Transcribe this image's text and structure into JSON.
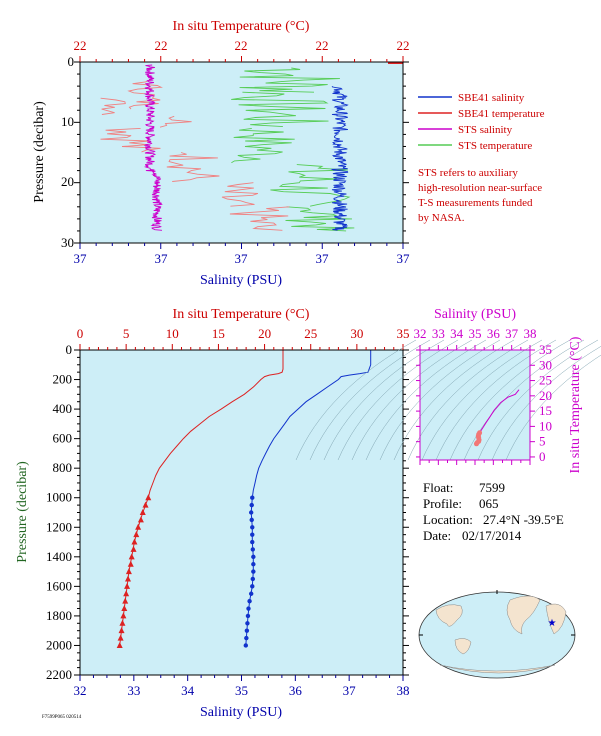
{
  "colors": {
    "plot_bg": "#cdeef7",
    "red": "#dd2222",
    "blue": "#1133cc",
    "magenta": "#cc00cc",
    "pink": "#f08080",
    "green": "#55cc55",
    "axis_red": "#cc0000",
    "axis_blue": "#000099",
    "ylabel_green": "#226622"
  },
  "top_chart": {
    "type": "line",
    "top_axis_title": "In situ Temperature (°C)",
    "top_ticks": [
      "22",
      "22",
      "22",
      "22",
      "22"
    ],
    "bottom_axis_title": "Salinity (PSU)",
    "bottom_ticks": [
      "37",
      "37",
      "37",
      "37",
      "37"
    ],
    "y_axis_title": "Pressure (decibar)",
    "y_ticks": [
      "0",
      "10",
      "20",
      "30"
    ],
    "ylim": [
      0,
      30
    ],
    "legend": [
      {
        "label": "SBE41 salinity",
        "color": "#1133cc"
      },
      {
        "label": "SBE41 temperature",
        "color": "#dd2222"
      },
      {
        "label": "STS salinity",
        "color": "#cc00cc"
      },
      {
        "label": "STS temperature",
        "color": "#55cc55"
      }
    ],
    "note": [
      "STS refers to auxiliary",
      "high-resolution near-surface",
      "T-S measurements funded",
      "by NASA."
    ]
  },
  "main_chart": {
    "type": "line",
    "top_axis_title": "In situ Temperature (°C)",
    "temperature_ticks": [
      "0",
      "5",
      "10",
      "15",
      "20",
      "25",
      "30",
      "35"
    ],
    "bottom_axis_title": "Salinity (PSU)",
    "salinity_ticks": [
      "32",
      "33",
      "34",
      "35",
      "36",
      "37",
      "38"
    ],
    "y_axis_title": "Pressure (decibar)",
    "pressure_ticks": [
      "0",
      "200",
      "400",
      "600",
      "800",
      "1000",
      "1200",
      "1400",
      "1600",
      "1800",
      "2000",
      "2200"
    ],
    "temperature_xlim": [
      0,
      35
    ],
    "salinity_xlim": [
      32,
      38
    ],
    "pressure_ylim": [
      0,
      2200
    ],
    "temperature_profile": {
      "pressure": [
        0,
        10,
        20,
        30,
        50,
        80,
        100,
        130,
        150,
        160,
        170,
        180,
        200,
        250,
        300,
        350,
        400,
        450,
        500,
        550,
        600,
        650,
        700,
        750,
        800,
        850,
        900,
        950,
        1000,
        1100,
        1200,
        1300,
        1400,
        1500,
        1600,
        1700,
        1800,
        1900,
        2000
      ],
      "temperature": [
        22.0,
        22.0,
        22.0,
        22.0,
        22.0,
        22.0,
        22.0,
        22.0,
        21.9,
        21.5,
        20.5,
        20.0,
        19.6,
        18.8,
        17.8,
        16.5,
        15.3,
        14.0,
        13.0,
        12.0,
        11.2,
        10.5,
        9.8,
        9.2,
        8.6,
        8.2,
        7.9,
        7.6,
        7.4,
        6.8,
        6.3,
        5.9,
        5.6,
        5.3,
        5.1,
        4.9,
        4.7,
        4.5,
        4.3
      ]
    },
    "temperature_markers": {
      "pressure": [
        1000,
        1050,
        1100,
        1150,
        1200,
        1250,
        1300,
        1350,
        1400,
        1450,
        1500,
        1550,
        1600,
        1650,
        1700,
        1750,
        1800,
        1850,
        1900,
        1950,
        2000
      ],
      "temperature": [
        7.4,
        7.1,
        6.8,
        6.6,
        6.3,
        6.1,
        5.9,
        5.8,
        5.6,
        5.5,
        5.3,
        5.2,
        5.1,
        5.0,
        4.9,
        4.8,
        4.7,
        4.6,
        4.5,
        4.4,
        4.3
      ]
    },
    "salinity_profile": {
      "pressure": [
        0,
        50,
        100,
        150,
        160,
        170,
        180,
        200,
        250,
        300,
        350,
        400,
        450,
        500,
        550,
        600,
        650,
        700,
        750,
        800,
        850,
        900,
        950,
        1000,
        1100,
        1200,
        1300,
        1400,
        1500,
        1600,
        1700,
        1800,
        1900,
        2000
      ],
      "salinity": [
        37.4,
        37.4,
        37.4,
        37.35,
        37.2,
        37.0,
        36.85,
        36.8,
        36.6,
        36.4,
        36.2,
        36.05,
        35.9,
        35.8,
        35.7,
        35.6,
        35.52,
        35.45,
        35.38,
        35.32,
        35.28,
        35.25,
        35.22,
        35.2,
        35.18,
        35.2,
        35.2,
        35.22,
        35.22,
        35.2,
        35.15,
        35.12,
        35.1,
        35.08
      ]
    },
    "salinity_markers": {
      "pressure": [
        1000,
        1050,
        1100,
        1150,
        1200,
        1250,
        1300,
        1350,
        1400,
        1450,
        1500,
        1550,
        1600,
        1650,
        1700,
        1750,
        1800,
        1850,
        1900,
        1950,
        2000
      ],
      "salinity": [
        35.2,
        35.19,
        35.18,
        35.19,
        35.2,
        35.2,
        35.2,
        35.21,
        35.22,
        35.22,
        35.22,
        35.21,
        35.2,
        35.18,
        35.15,
        35.13,
        35.12,
        35.11,
        35.1,
        35.09,
        35.08
      ]
    }
  },
  "ts_chart": {
    "type": "scatter",
    "top_axis_title": "Salinity (PSU)",
    "x_ticks": [
      "32",
      "33",
      "34",
      "35",
      "36",
      "37",
      "38"
    ],
    "right_axis_title": "In situ Temperature (°C)",
    "y_ticks": [
      "0",
      "5",
      "10",
      "15",
      "20",
      "25",
      "30",
      "35"
    ],
    "xlim": [
      32,
      38
    ],
    "ylim": [
      -1,
      35
    ],
    "points": {
      "salinity": [
        37.4,
        37.2,
        36.8,
        36.4,
        36.05,
        35.8,
        35.6,
        35.45,
        35.32,
        35.25,
        35.2,
        35.18,
        35.2,
        35.22,
        35.2,
        35.12,
        35.08
      ],
      "temperature": [
        22.0,
        20.5,
        19.6,
        17.8,
        15.3,
        13.0,
        11.2,
        9.8,
        8.6,
        7.9,
        7.4,
        6.8,
        6.3,
        5.6,
        5.1,
        4.7,
        4.3
      ]
    }
  },
  "info": {
    "float_label": "Float:",
    "float_value": "7599",
    "profile_label": "Profile:",
    "profile_value": "065",
    "location_label": "Location:",
    "location_value": "27.4°N  -39.5°E",
    "date_label": "Date:",
    "date_value": "02/17/2014"
  },
  "footer_text": "F7599P065 020514",
  "map_marker": {
    "lat": 27.4,
    "lon": -39.5
  }
}
